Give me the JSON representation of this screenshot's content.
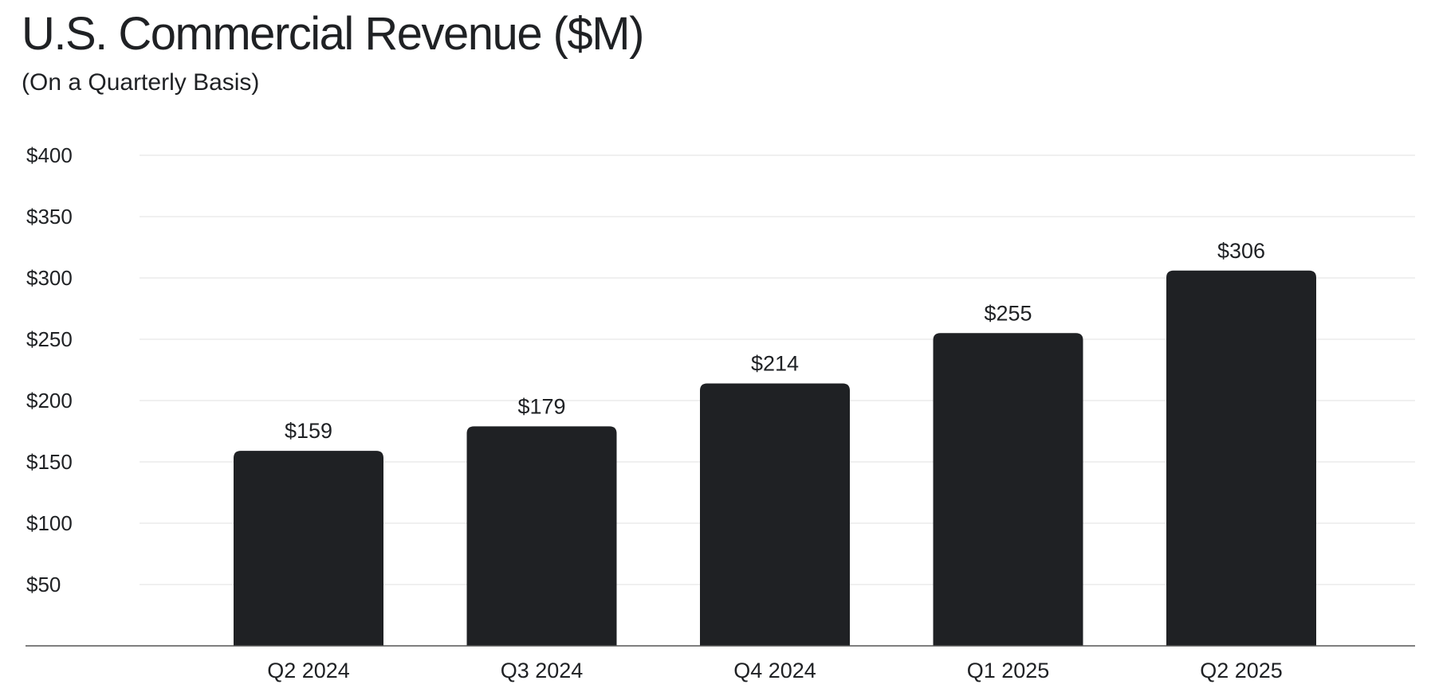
{
  "chart_data": {
    "type": "bar",
    "title": "U.S. Commercial Revenue ($M)",
    "subtitle": "(On a Quarterly Basis)",
    "categories": [
      "Q2 2024",
      "Q3 2024",
      "Q4 2024",
      "Q1 2025",
      "Q2 2025"
    ],
    "values": [
      159,
      179,
      214,
      255,
      306
    ],
    "value_labels": [
      "$159",
      "$179",
      "$214",
      "$255",
      "$306"
    ],
    "yticks": [
      50,
      100,
      150,
      200,
      250,
      300,
      350,
      400
    ],
    "ytick_labels": [
      "$50",
      "$100",
      "$150",
      "$200",
      "$250",
      "$300",
      "$350",
      "$400"
    ],
    "ylim": [
      0,
      400
    ],
    "xlabel": "",
    "ylabel": "",
    "grid": true,
    "legend": "none",
    "colors": {
      "bar": "#1f2124",
      "grid": "#e6e6e6",
      "axis": "#555555",
      "text": "#1f2124"
    }
  }
}
